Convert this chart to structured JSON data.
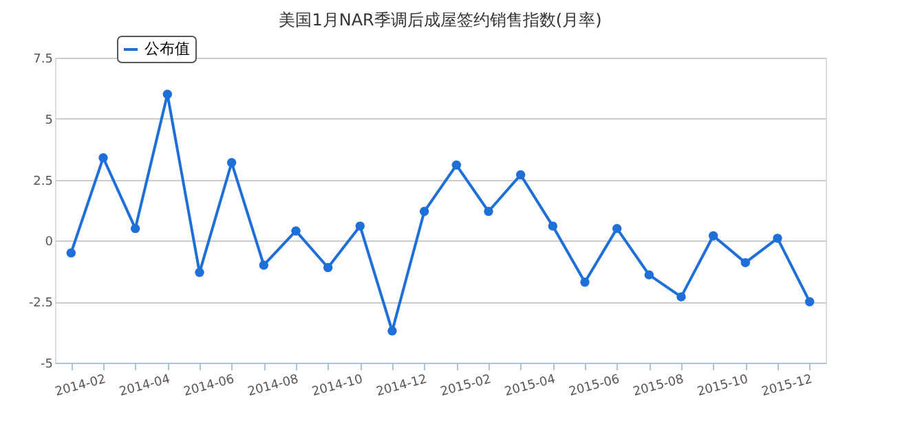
{
  "chart_data": {
    "type": "line",
    "title": "美国1月NAR季调后成屋签约销售指数(月率)",
    "categories": [
      null,
      "2014-02",
      null,
      "2014-04",
      null,
      "2014-06",
      null,
      "2014-08",
      null,
      "2014-10",
      null,
      "2014-12",
      null,
      "2015-02",
      null,
      "2015-04",
      null,
      "2015-06",
      null,
      "2015-08",
      null,
      "2015-10",
      null,
      "2015-12"
    ],
    "series": [
      {
        "name": "公布值",
        "color": "#1f6fd8",
        "values": [
          -0.5,
          3.4,
          0.5,
          6.0,
          -1.3,
          3.2,
          -1.0,
          0.4,
          -1.1,
          0.6,
          -3.7,
          1.2,
          3.1,
          1.2,
          2.7,
          0.6,
          -1.7,
          0.5,
          -1.4,
          -2.3,
          0.2,
          -0.9,
          0.1,
          -2.5
        ]
      }
    ],
    "ylim": [
      -5,
      7.5
    ],
    "yticks": [
      -5,
      -2.5,
      0,
      2.5,
      5,
      7.5
    ],
    "grid": "y",
    "legend": "top left",
    "marker": "circle",
    "line_style": "solid"
  }
}
